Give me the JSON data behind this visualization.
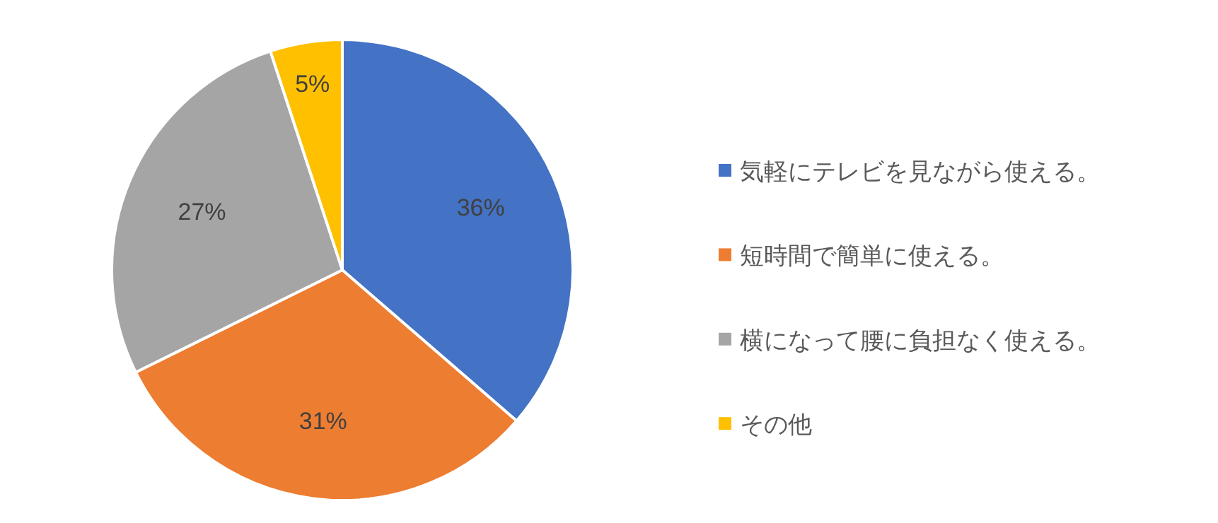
{
  "chart_data": {
    "type": "pie",
    "categories": [
      "気軽にテレビを見ながら使える。",
      "短時間で簡単に使える。",
      "横になって腰に負担なく使える。",
      "その他"
    ],
    "values": [
      36,
      31,
      27,
      5
    ],
    "colors": [
      "#4472c4",
      "#ed7d31",
      "#a5a5a5",
      "#ffc000"
    ],
    "value_labels": [
      "36%",
      "31%",
      "27%",
      "5%"
    ],
    "legend": "right"
  }
}
